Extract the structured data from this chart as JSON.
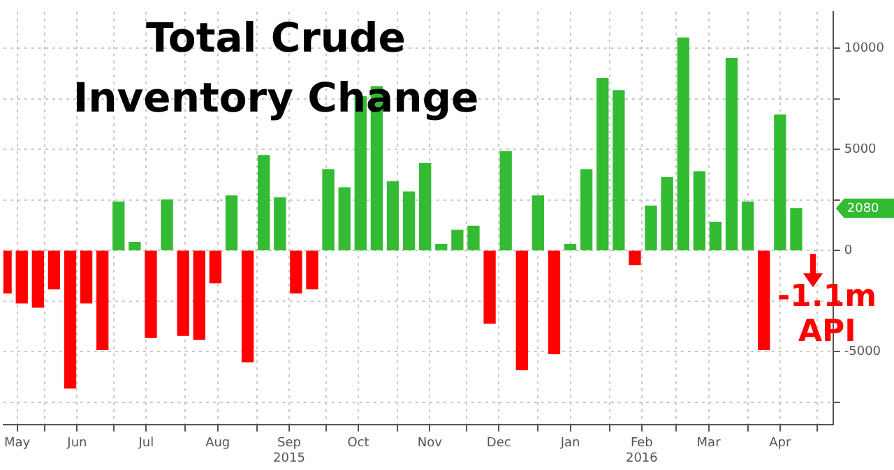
{
  "chart_data": {
    "type": "bar",
    "title": "Total Crude Inventory Change",
    "x": [
      "2015-05-15",
      "2015-05-22",
      "2015-05-29",
      "2015-06-05",
      "2015-06-12",
      "2015-06-19",
      "2015-06-26",
      "2015-07-03",
      "2015-07-10",
      "2015-07-17",
      "2015-07-24",
      "2015-07-31",
      "2015-08-07",
      "2015-08-14",
      "2015-08-21",
      "2015-08-28",
      "2015-09-04",
      "2015-09-11",
      "2015-09-18",
      "2015-09-25",
      "2015-10-02",
      "2015-10-09",
      "2015-10-16",
      "2015-10-23",
      "2015-10-30",
      "2015-11-06",
      "2015-11-13",
      "2015-11-20",
      "2015-11-27",
      "2015-12-04",
      "2015-12-11",
      "2015-12-18",
      "2015-12-25",
      "2016-01-01",
      "2016-01-08",
      "2016-01-15",
      "2016-01-22",
      "2016-01-29",
      "2016-02-05",
      "2016-02-12",
      "2016-02-19",
      "2016-02-26",
      "2016-03-04",
      "2016-03-11",
      "2016-03-18",
      "2016-03-25",
      "2016-04-01",
      "2016-04-08",
      "2016-04-15",
      "2016-04-22"
    ],
    "values": [
      -2100,
      -2600,
      -2800,
      -1900,
      -6800,
      -2600,
      -4900,
      2400,
      400,
      -4300,
      2500,
      -4200,
      -4400,
      -1600,
      2700,
      -5500,
      4700,
      2600,
      -2100,
      -1900,
      4000,
      3100,
      7600,
      8100,
      3400,
      2900,
      4300,
      300,
      1000,
      1200,
      -3600,
      4900,
      -5900,
      2700,
      -5100,
      300,
      4000,
      8500,
      7900,
      -700,
      2200,
      3600,
      10500,
      3900,
      1400,
      9500,
      2400,
      -4900,
      6700,
      2080
    ],
    "colors": [
      "#ff0000",
      "#ff0000",
      "#ff0000",
      "#ff0000",
      "#ff0000",
      "#ff0000",
      "#ff0000",
      "#33bb33",
      "#33bb33",
      "#ff0000",
      "#33bb33",
      "#ff0000",
      "#ff0000",
      "#ff0000",
      "#33bb33",
      "#ff0000",
      "#33bb33",
      "#33bb33",
      "#ff0000",
      "#ff0000",
      "#33bb33",
      "#33bb33",
      "#33bb33",
      "#33bb33",
      "#33bb33",
      "#33bb33",
      "#33bb33",
      "#33bb33",
      "#33bb33",
      "#33bb33",
      "#ff0000",
      "#33bb33",
      "#ff0000",
      "#33bb33",
      "#ff0000",
      "#33bb33",
      "#33bb33",
      "#33bb33",
      "#33bb33",
      "#ff0000",
      "#33bb33",
      "#33bb33",
      "#33bb33",
      "#33bb33",
      "#33bb33",
      "#33bb33",
      "#33bb33",
      "#ff0000",
      "#33bb33",
      "#33bb33"
    ],
    "xlim": [
      "2015-05-14",
      "2016-05-08"
    ],
    "xticks": [
      {
        "value": "2015-05-20",
        "label": "May"
      },
      {
        "value": "2015-06-01",
        "label": null
      },
      {
        "value": "2015-06-15",
        "label": "Jun"
      },
      {
        "value": "2015-07-01",
        "label": null
      },
      {
        "value": "2015-07-15",
        "label": "Jul"
      },
      {
        "value": "2015-08-01",
        "label": null
      },
      {
        "value": "2015-08-15",
        "label": "Aug"
      },
      {
        "value": "2015-09-01",
        "label": null
      },
      {
        "value": "2015-09-15",
        "label": "Sep\n2015"
      },
      {
        "value": "2015-10-01",
        "label": null
      },
      {
        "value": "2015-10-15",
        "label": "Oct"
      },
      {
        "value": "2015-11-01",
        "label": null
      },
      {
        "value": "2015-11-15",
        "label": "Nov"
      },
      {
        "value": "2015-12-01",
        "label": null
      },
      {
        "value": "2015-12-15",
        "label": "Dec"
      },
      {
        "value": "2016-01-01",
        "label": null
      },
      {
        "value": "2016-01-15",
        "label": "Jan"
      },
      {
        "value": "2016-02-01",
        "label": null
      },
      {
        "value": "2016-02-15",
        "label": "Feb\n2016"
      },
      {
        "value": "2016-03-01",
        "label": null
      },
      {
        "value": "2016-03-15",
        "label": "Mar"
      },
      {
        "value": "2016-04-01",
        "label": null
      },
      {
        "value": "2016-04-15",
        "label": "Apr"
      },
      {
        "value": "2016-05-01",
        "label": null
      }
    ],
    "ylim": [
      -8600,
      11800
    ],
    "yticks": [
      {
        "value": -7500,
        "label": null
      },
      -5000,
      {
        "value": -2500,
        "label": null
      },
      0,
      {
        "value": 2500,
        "label": null
      },
      5000,
      {
        "value": 7500,
        "label": null
      },
      10000
    ],
    "grid": true,
    "annotations": [
      "2080",
      {
        "text": "-1.1m\nAPI",
        "x": "2016-04-29",
        "y": -1100
      }
    ]
  }
}
